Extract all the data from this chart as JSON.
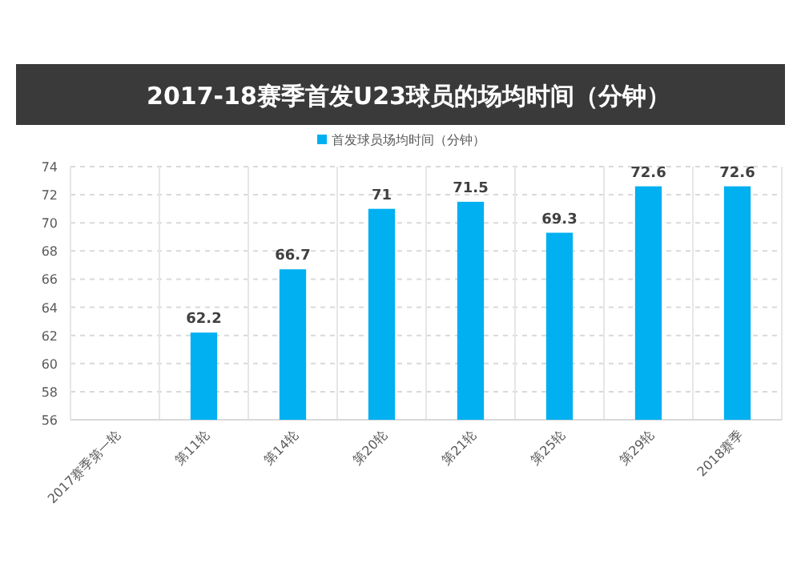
{
  "chart_data": {
    "type": "bar",
    "title": "2017-18赛季首发U23球员的场均时间（分钟）",
    "categories": [
      "2017赛季第一轮",
      "第11轮",
      "第14轮",
      "第20轮",
      "第21轮",
      "第25轮",
      "第29轮",
      "2018赛季"
    ],
    "series": [
      {
        "name": "首发球员场均时间（分钟）",
        "color": "#00b0f0",
        "values": [
          null,
          62.2,
          66.7,
          71,
          71.5,
          69.3,
          72.6,
          72.6
        ]
      }
    ],
    "ylim": [
      56,
      74
    ],
    "yticks": [
      56,
      58,
      60,
      62,
      64,
      66,
      68,
      70,
      72,
      74
    ],
    "grid": true,
    "legend": "top",
    "data_labels": true
  }
}
